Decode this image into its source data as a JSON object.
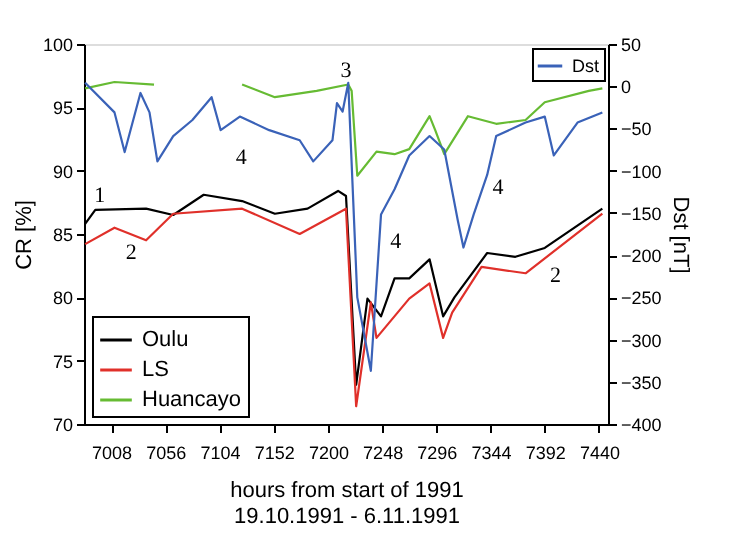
{
  "chart_data": {
    "type": "line",
    "xlabel": "hours from start of 1991\n19.10.1991 - 6.11.1991",
    "ylabel": "CR [%]",
    "y2label": "Dst [nT]",
    "xlim": [
      6984,
      7448
    ],
    "xticks": [
      7008,
      7056,
      7104,
      7152,
      7200,
      7248,
      7296,
      7344,
      7392,
      7440
    ],
    "ylim": [
      70,
      100
    ],
    "yticks": [
      70,
      75,
      80,
      85,
      90,
      95,
      100
    ],
    "y2lim": [
      -400,
      50
    ],
    "y2ticks": [
      -400,
      -350,
      -300,
      -250,
      -200,
      -150,
      -100,
      -50,
      0,
      50
    ],
    "grid": false,
    "legend": "top right",
    "line_style": "solid",
    "marker": "none",
    "series": [
      {
        "name": "Oulu",
        "color": "#000000",
        "x": [
          6985,
          6994,
          7039,
          7063,
          7090,
          7124,
          7153,
          7182,
          7209,
          7216,
          7225,
          7235,
          7247,
          7259,
          7272,
          7290,
          7302,
          7312,
          7341,
          7366,
          7392,
          7443
        ],
        "values": [
          85.8,
          86.9,
          87,
          86.5,
          88.1,
          87.6,
          86.6,
          87,
          88.4,
          88,
          73.1,
          79.9,
          78.5,
          81.5,
          81.5,
          83,
          78.5,
          80,
          83.5,
          83.2,
          83.9,
          87
        ]
      },
      {
        "name": "LS",
        "color": "#e0302a",
        "x": [
          6985,
          7011,
          7039,
          7063,
          7124,
          7175,
          7216,
          7225,
          7238,
          7243,
          7272,
          7290,
          7302,
          7310,
          7336,
          7375,
          7443
        ],
        "values": [
          84.2,
          85.5,
          84.5,
          86.6,
          87,
          85,
          87,
          71.4,
          79.6,
          76.8,
          79.9,
          81.1,
          76.8,
          78.8,
          82.4,
          81.9,
          86.6
        ]
      },
      {
        "name": "Huancayo",
        "color": "#66bb33",
        "x": [
          6985,
          7011,
          7046,
          null,
          7124,
          7153,
          7190,
          7218,
          7221,
          7226,
          7243,
          7259,
          7272,
          7290,
          7295,
          7303,
          7324,
          7349,
          7375,
          7392,
          7431,
          7443
        ],
        "values": [
          96.5,
          97,
          96.8,
          null,
          96.8,
          95.8,
          96.3,
          96.8,
          96.3,
          89.6,
          91.5,
          91.3,
          91.7,
          94.3,
          93.2,
          91.3,
          94.3,
          93.7,
          94,
          95.4,
          96.3,
          96.5
        ]
      },
      {
        "name": "Dst",
        "color": "#3a62b8",
        "axis": "y2",
        "x": [
          6985,
          7011,
          7020,
          7034,
          7042,
          7049,
          7063,
          7080,
          7097,
          7105,
          7122,
          7148,
          7175,
          7187,
          7204,
          7208,
          7213,
          7218,
          7226,
          7238,
          7247,
          7259,
          7272,
          7290,
          7303,
          7315,
          7320,
          7329,
          7341,
          7349,
          7375,
          7392,
          7400,
          7421,
          7443
        ],
        "values": [
          4,
          -31,
          -78,
          -8,
          -31,
          -89,
          -59,
          -40,
          -13,
          -52,
          -36,
          -52,
          -64,
          -89,
          -64,
          -20,
          -30,
          4,
          -250,
          -337,
          -152,
          -122,
          -82,
          -59,
          -75,
          -159,
          -191,
          -152,
          -105,
          -59,
          -43,
          -36,
          -82,
          -43,
          -31
        ]
      }
    ],
    "annotations": [
      "1",
      "2",
      "2",
      "3",
      "4",
      "4",
      "4"
    ]
  }
}
